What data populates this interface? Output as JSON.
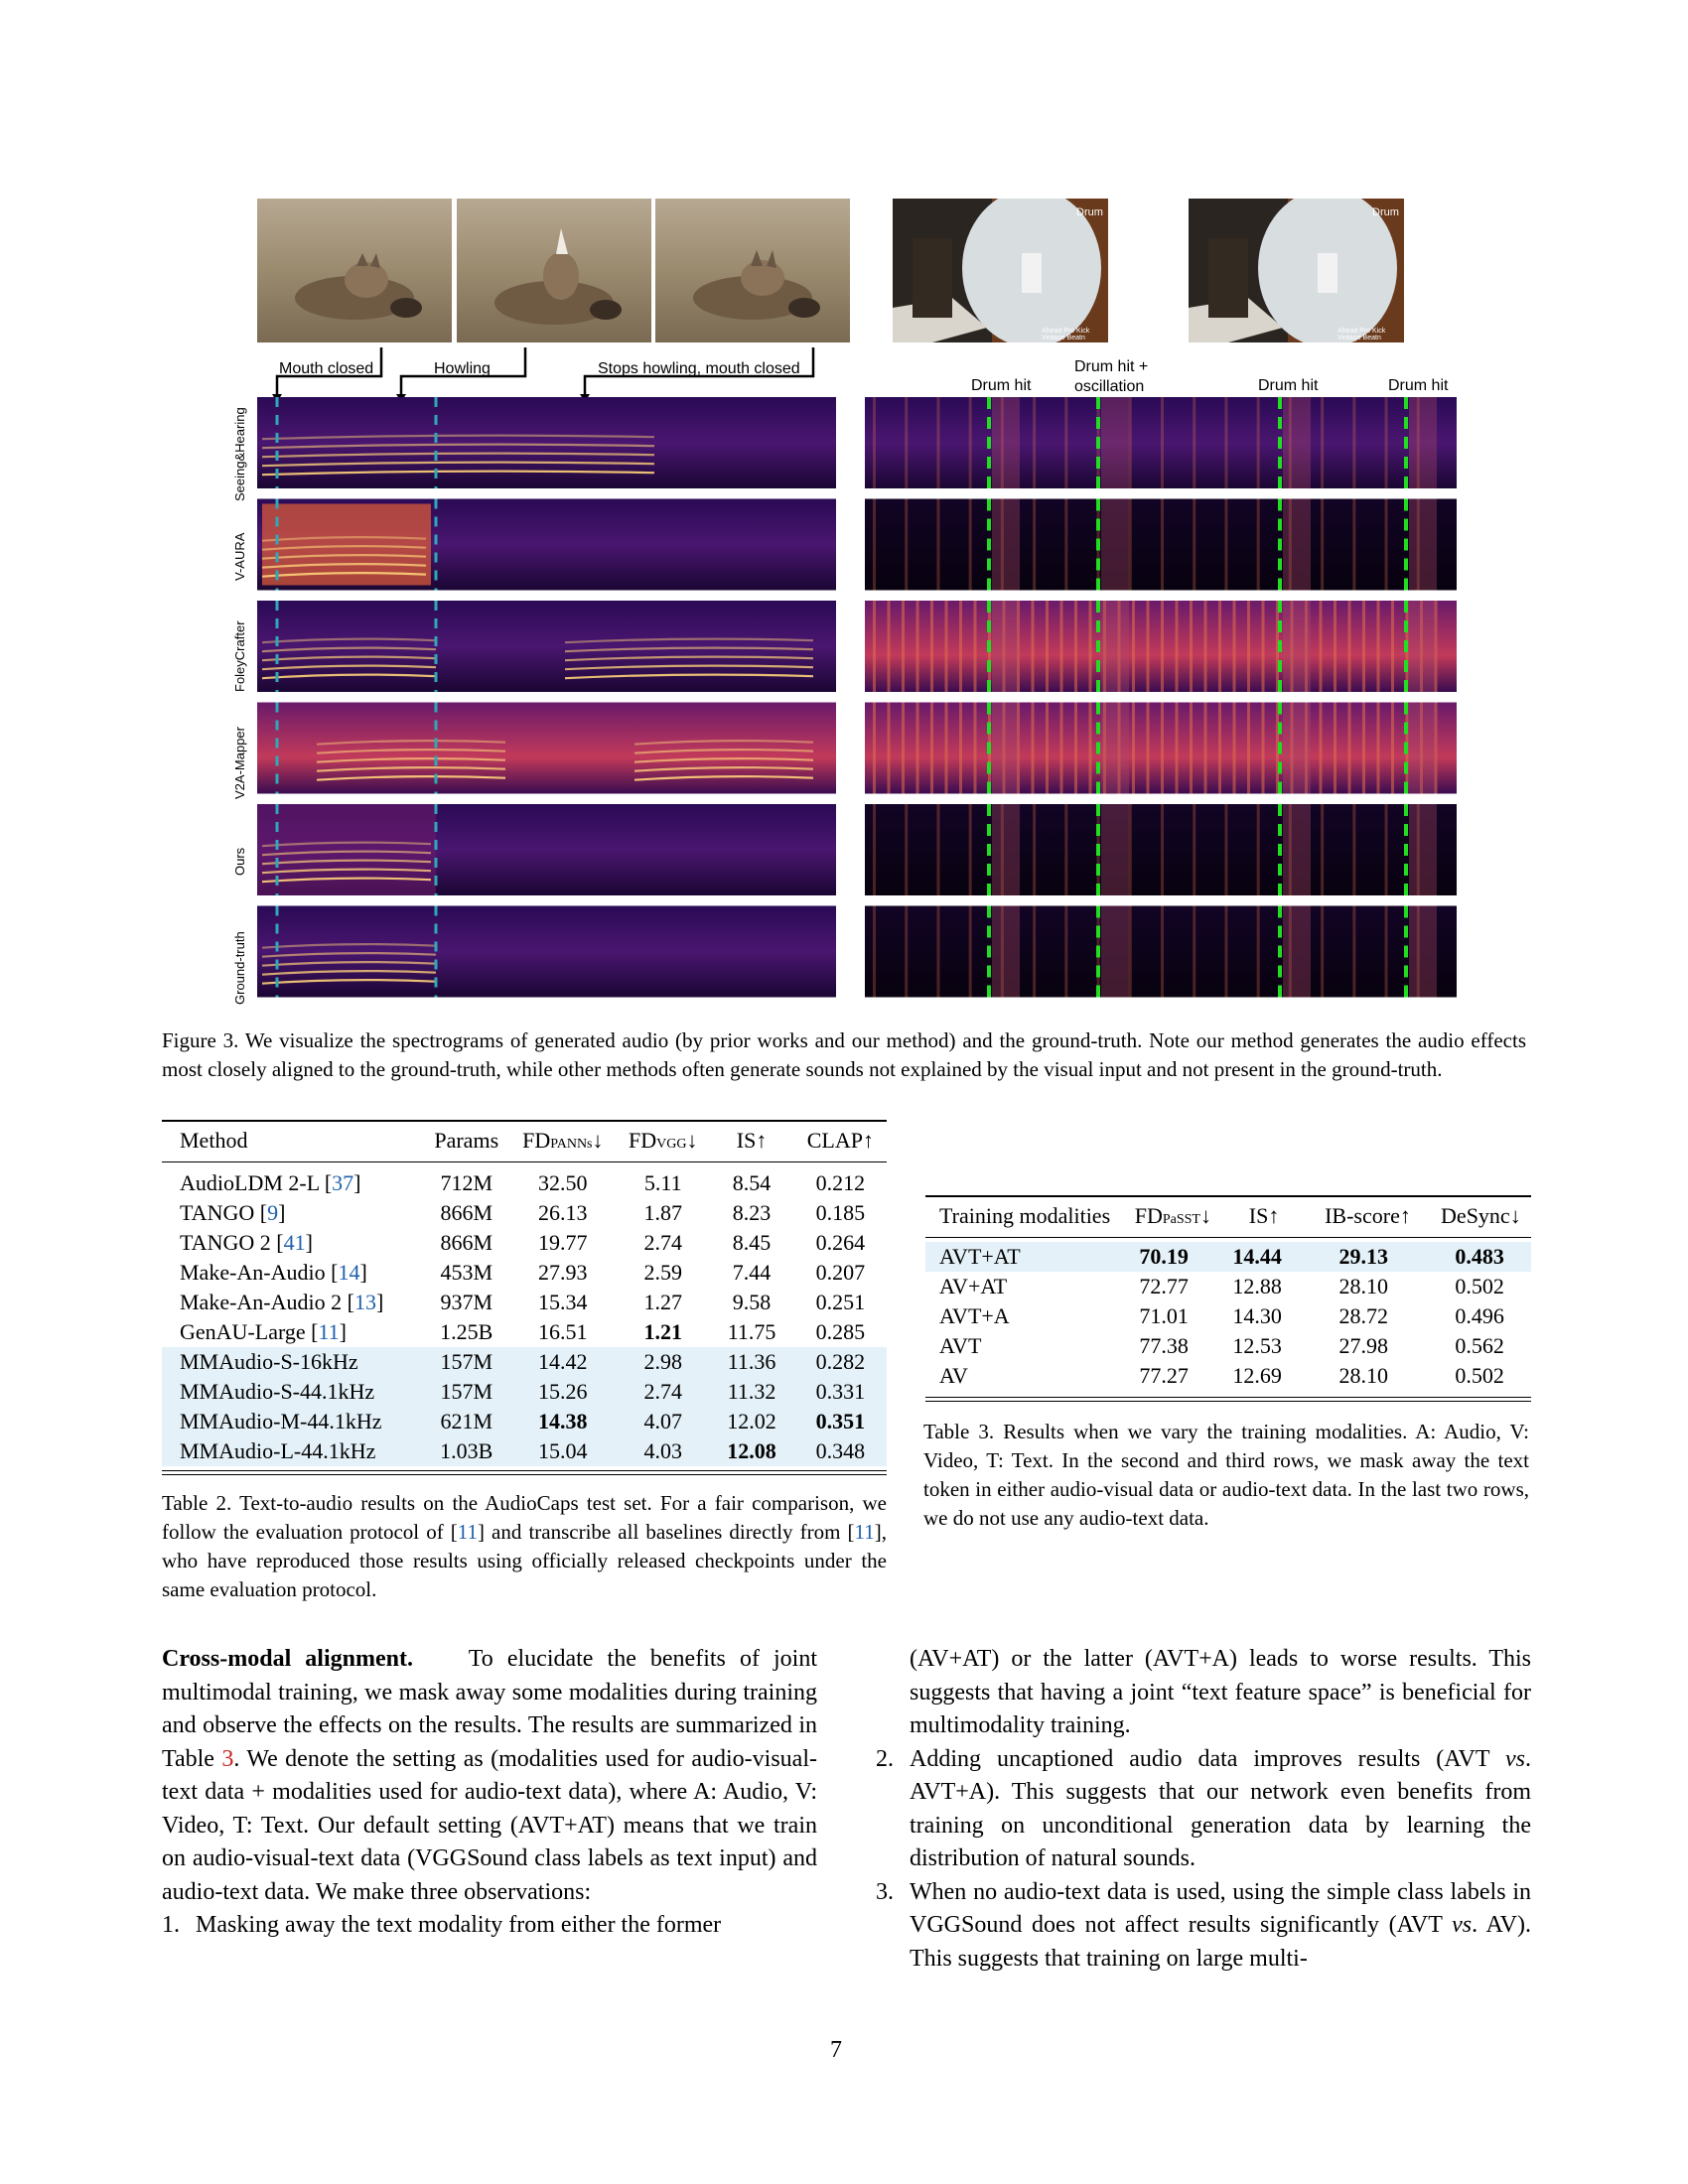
{
  "figure": {
    "coyote_annotations": [
      "Mouth closed",
      "Howling",
      "Stops howling, mouth closed"
    ],
    "drum_annotations": [
      "Drum hit",
      "Drum hit +",
      "oscillation",
      "Drum hit",
      "Drum hit"
    ],
    "drum_overlay_text": "Drum",
    "drum_logo_text": "Ahead Pro Kick Vintage Beatn",
    "row_labels": [
      "Seeing&Hearing",
      "V-AURA",
      "FoleyCrafter",
      "V2A-Mapper",
      "Ours",
      "Ground-truth"
    ],
    "colors": {
      "coyote_marker": "#2fa8b8",
      "drum_marker": "#22dd22",
      "spectrogram_low": "#1a0633",
      "spectrogram_high": "#ffd27a"
    },
    "caption_label": "Figure 3.",
    "caption_text": "We visualize the spectrograms of generated audio (by prior works and our method) and the ground-truth. Note our method generates the audio effects most closely aligned to the ground-truth, while other methods often generate sounds not explained by the visual input and not present in the ground-truth."
  },
  "table2": {
    "headers": [
      "Method",
      "Params",
      "FD",
      "PANNs",
      "↓",
      "FD",
      "VGG",
      "↓",
      "IS↑",
      "CLAP↑"
    ],
    "rows": [
      {
        "method": "AudioLDM 2-L",
        "cite": "37",
        "params": "712M",
        "fd_panns": "32.50",
        "fd_vgg": "5.11",
        "is": "8.54",
        "clap": "0.212"
      },
      {
        "method": "TANGO",
        "cite": "9",
        "params": "866M",
        "fd_panns": "26.13",
        "fd_vgg": "1.87",
        "is": "8.23",
        "clap": "0.185"
      },
      {
        "method": "TANGO 2",
        "cite": "41",
        "params": "866M",
        "fd_panns": "19.77",
        "fd_vgg": "2.74",
        "is": "8.45",
        "clap": "0.264"
      },
      {
        "method": "Make-An-Audio",
        "cite": "14",
        "params": "453M",
        "fd_panns": "27.93",
        "fd_vgg": "2.59",
        "is": "7.44",
        "clap": "0.207"
      },
      {
        "method": "Make-An-Audio 2",
        "cite": "13",
        "params": "937M",
        "fd_panns": "15.34",
        "fd_vgg": "1.27",
        "is": "9.58",
        "clap": "0.251"
      },
      {
        "method": "GenAU-Large",
        "cite": "11",
        "params": "1.25B",
        "fd_panns": "16.51",
        "fd_vgg": "1.21",
        "is": "11.75",
        "clap": "0.285"
      },
      {
        "method": "MMAudio-S-16kHz",
        "cite": "",
        "params": "157M",
        "fd_panns": "14.42",
        "fd_vgg": "2.98",
        "is": "11.36",
        "clap": "0.282"
      },
      {
        "method": "MMAudio-S-44.1kHz",
        "cite": "",
        "params": "157M",
        "fd_panns": "15.26",
        "fd_vgg": "2.74",
        "is": "11.32",
        "clap": "0.331"
      },
      {
        "method": "MMAudio-M-44.1kHz",
        "cite": "",
        "params": "621M",
        "fd_panns": "14.38",
        "fd_vgg": "4.07",
        "is": "12.02",
        "clap": "0.351"
      },
      {
        "method": "MMAudio-L-44.1kHz",
        "cite": "",
        "params": "1.03B",
        "fd_panns": "15.04",
        "fd_vgg": "4.03",
        "is": "12.08",
        "clap": "0.348"
      }
    ],
    "caption_label": "Table 2.",
    "caption_parts": [
      "Text-to-audio results on the AudioCaps test set. For a fair comparison, we follow the evaluation protocol of [",
      "11",
      "] and transcribe all baselines directly from [",
      "11",
      "], who have reproduced those results using officially released checkpoints under the same evaluation protocol."
    ]
  },
  "table3": {
    "headers": [
      "Training modalities",
      "FD",
      "PaSST",
      "↓",
      "IS↑",
      "IB-score↑",
      "DeSync↓"
    ],
    "rows": [
      {
        "mod": "AVT+AT",
        "fd": "70.19",
        "is": "14.44",
        "ib": "29.13",
        "desync": "0.483"
      },
      {
        "mod": "AV+AT",
        "fd": "72.77",
        "is": "12.88",
        "ib": "28.10",
        "desync": "0.502"
      },
      {
        "mod": "AVT+A",
        "fd": "71.01",
        "is": "14.30",
        "ib": "28.72",
        "desync": "0.496"
      },
      {
        "mod": "AVT",
        "fd": "77.38",
        "is": "12.53",
        "ib": "27.98",
        "desync": "0.562"
      },
      {
        "mod": "AV",
        "fd": "77.27",
        "is": "12.69",
        "ib": "28.10",
        "desync": "0.502"
      }
    ],
    "caption_label": "Table 3.",
    "caption_text": "Results when we vary the training modalities. A: Audio, V: Video, T: Text. In the second and third rows, we mask away the text token in either audio-visual data or audio-text data. In the last two rows, we do not use any audio-text data."
  },
  "body": {
    "heading": "Cross-modal alignment.",
    "para_a": "To elucidate the benefits of joint multimodal training, we mask away some modalities during training and observe the effects on the results. The results are summarized in Table",
    "para_ref": "3",
    "para_b": ". We denote the setting as (modalities used for audio-visual-text data + modalities used for audio-text data), where A: Audio, V: Video, T: Text. Our default setting (AVT+AT) means that we train on audio-visual-text data (VGGSound class labels as text input) and audio-text data. We make three observations:",
    "item1_num": "1.",
    "item1_a": "Masking away the text modality from either the former",
    "item1_b": "(AV+AT) or the latter (AVT+A) leads to worse results. This suggests that having a joint “text feature space” is beneficial for multimodality training.",
    "item2_num": "2.",
    "item2_a": "Adding uncaptioned audio data improves results (AVT",
    "item2_vs": "vs",
    "item2_b": ". AVT+A). This suggests that our network even benefits from training on unconditional generation data by learning the distribution of natural sounds.",
    "item3_num": "3.",
    "item3_a": "When no audio-text data is used, using the simple class labels in VGGSound does not affect results significantly (AVT",
    "item3_vs": "vs",
    "item3_b": ". AV). This suggests that training on large multi-"
  },
  "page_number": "7"
}
